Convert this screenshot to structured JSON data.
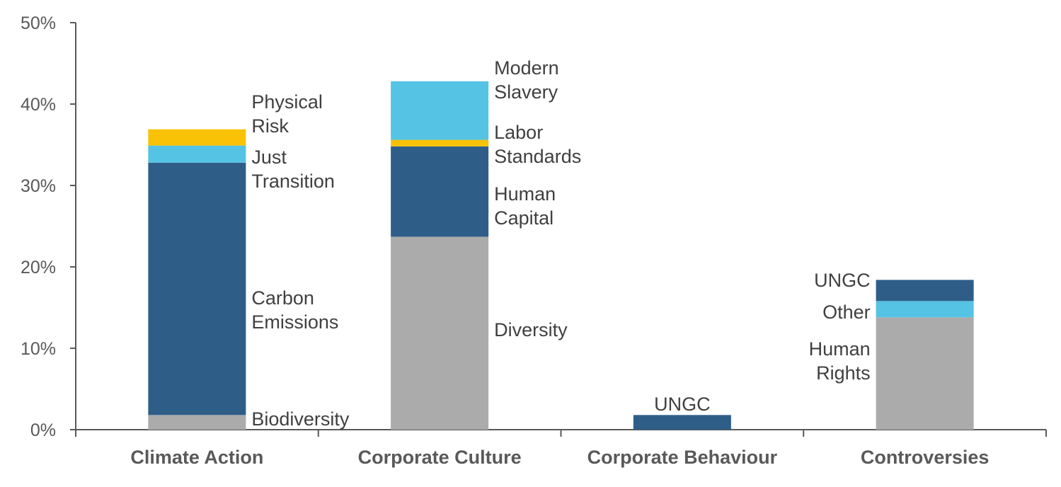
{
  "chart_data": {
    "type": "bar",
    "stacked": true,
    "categories": [
      "Climate Action",
      "Corporate Culture",
      "Corporate Behaviour",
      "Controversies"
    ],
    "ylim": [
      0,
      50
    ],
    "yticks": [
      "0%",
      "10%",
      "20%",
      "30%",
      "40%",
      "50%"
    ],
    "grid": false,
    "colors": {
      "grey": "#ababab",
      "navy": "#2e5e88",
      "lightblue": "#55c3e3",
      "gold": "#f9c206"
    },
    "stacks": [
      {
        "category": "Climate Action",
        "segments": [
          {
            "label": "Biodiversity",
            "value": 1.8,
            "color": "grey"
          },
          {
            "label": "Carbon Emissions",
            "value": 31.0,
            "color": "navy"
          },
          {
            "label": "Just Transition",
            "value": 2.1,
            "color": "lightblue"
          },
          {
            "label": "Physical Risk",
            "value": 2.0,
            "color": "gold"
          }
        ]
      },
      {
        "category": "Corporate Culture",
        "segments": [
          {
            "label": "Diversity",
            "value": 23.7,
            "color": "grey"
          },
          {
            "label": "Human Capital",
            "value": 11.1,
            "color": "navy"
          },
          {
            "label": "Labor Standards",
            "value": 0.8,
            "color": "gold"
          },
          {
            "label": "Modern Slavery",
            "value": 7.2,
            "color": "lightblue"
          }
        ]
      },
      {
        "category": "Corporate Behaviour",
        "segments": [
          {
            "label": "UNGC",
            "value": 1.8,
            "color": "navy"
          }
        ]
      },
      {
        "category": "Controversies",
        "segments": [
          {
            "label": "Human Rights",
            "value": 13.8,
            "color": "grey"
          },
          {
            "label": "Other",
            "value": 2.0,
            "color": "lightblue"
          },
          {
            "label": "UNGC",
            "value": 2.6,
            "color": "navy"
          }
        ]
      }
    ]
  }
}
